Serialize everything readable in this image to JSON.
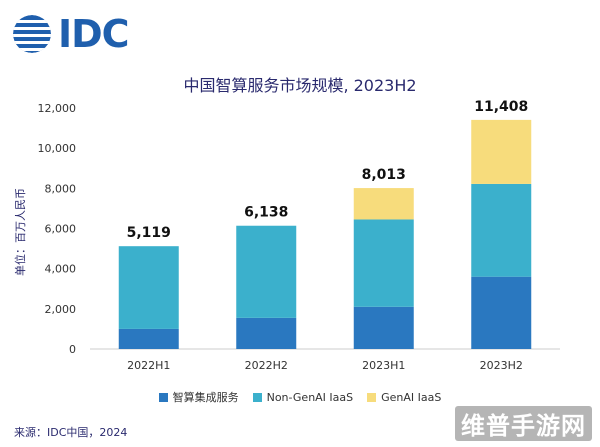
{
  "brand": {
    "name": "IDC",
    "color": "#1f5fad",
    "logo_icon": "idc-globe-icon"
  },
  "watermark": "维普手游网",
  "source": "来源：IDC中国，2024",
  "chart_data": {
    "type": "bar",
    "stacked": true,
    "title": "中国智算服务市场规模, 2023H2",
    "ylabel": "单位：百万人民币",
    "xlabel": "",
    "categories": [
      "2022H1",
      "2022H2",
      "2023H1",
      "2023H2"
    ],
    "ylim": [
      0,
      12000
    ],
    "yticks": [
      0,
      2000,
      4000,
      6000,
      8000,
      10000,
      12000
    ],
    "ytick_labels": [
      "0",
      "2,000",
      "4,000",
      "6,000",
      "8,000",
      "10,000",
      "12,000"
    ],
    "totals": [
      5119,
      6138,
      8013,
      11408
    ],
    "total_labels": [
      "5,119",
      "6,138",
      "8,013",
      "11,408"
    ],
    "grid": false,
    "legend_position": "bottom",
    "series": [
      {
        "name": "智算集成服务",
        "color": "#2a78c0",
        "values": [
          1000,
          1550,
          2100,
          3600
        ]
      },
      {
        "name": "Non-GenAI IaaS",
        "color": "#3bb0cc",
        "values": [
          4119,
          4588,
          4350,
          4620
        ]
      },
      {
        "name": "GenAI IaaS",
        "color": "#f7dc7c",
        "values": [
          0,
          0,
          1563,
          3188
        ]
      }
    ]
  }
}
